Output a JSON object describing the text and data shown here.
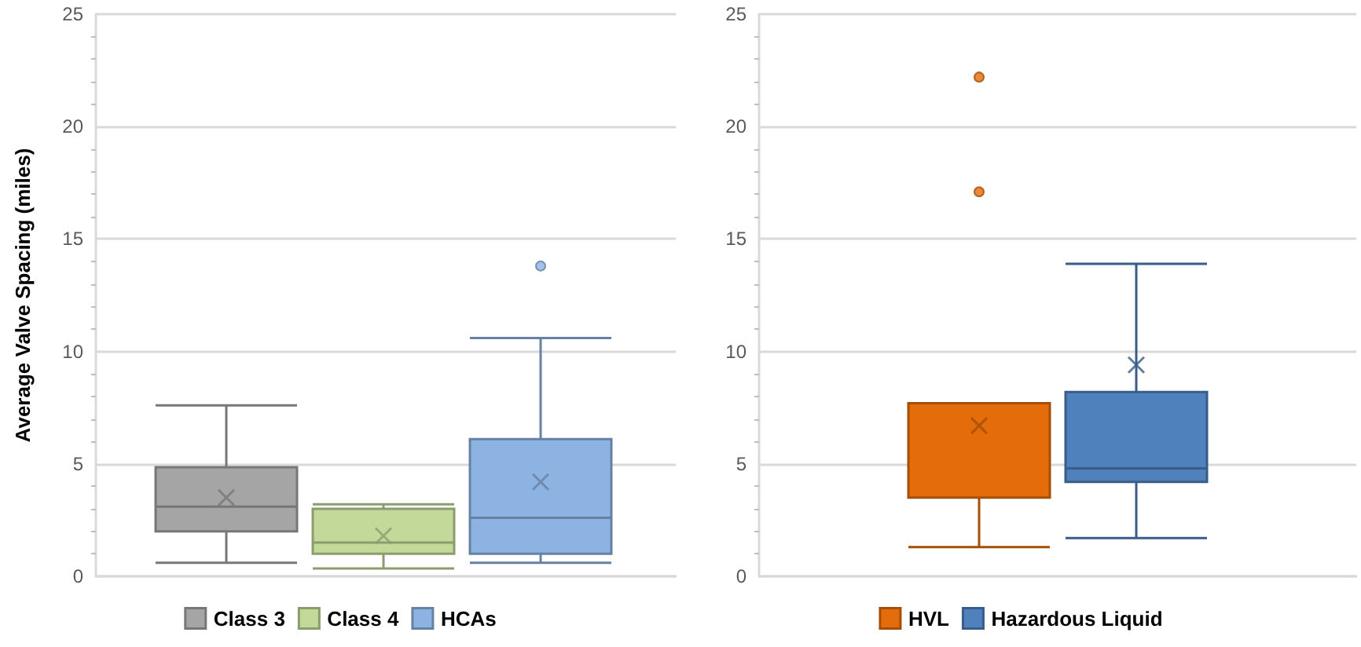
{
  "chart_data": [
    {
      "type": "box",
      "ylabel": "Average Valve Spacing (miles)",
      "categories": [
        null
      ],
      "ylim": [
        0,
        25
      ],
      "yticks": [
        0,
        5,
        10,
        15,
        20,
        25
      ],
      "grid": "y",
      "legend": "bottom",
      "marker": "cross",
      "series": [
        {
          "name": "Class 3",
          "color": "#a5a5a5",
          "boxes": [
            {
              "low": 0.6,
              "q1": 2.0,
              "median": 3.1,
              "q3": 4.85,
              "high": 7.6,
              "mean": 3.5
            }
          ]
        },
        {
          "name": "Class 4",
          "color": "#c3d99a",
          "boxes": [
            {
              "low": 0.35,
              "q1": 1.0,
              "median": 1.5,
              "q3": 3.0,
              "high": 3.2,
              "mean": 1.8
            }
          ]
        },
        {
          "name": "HCAs",
          "color": "#8db3e2",
          "boxes": [
            {
              "low": 0.6,
              "q1": 1.0,
              "median": 2.6,
              "q3": 6.1,
              "high": 10.6,
              "mean": 4.2,
              "outliers": [
                13.8
              ]
            }
          ]
        }
      ]
    },
    {
      "type": "box",
      "categories": [
        null
      ],
      "ylim": [
        0,
        25
      ],
      "yticks": [
        0,
        5,
        10,
        15,
        20,
        25
      ],
      "grid": "y",
      "legend": "bottom",
      "marker": "cross",
      "series": [
        {
          "name": "HVL",
          "color": "#e46c0a",
          "boxes": [
            {
              "low": 1.3,
              "q1": 3.5,
              "median": 3.5,
              "q3": 7.7,
              "high": 7.7,
              "mean": 6.7,
              "outliers": [
                17.1,
                22.2
              ]
            }
          ]
        },
        {
          "name": "Hazardous Liquid",
          "color": "#4f81bd",
          "boxes": [
            {
              "low": 1.7,
              "q1": 4.2,
              "median": 4.8,
              "q3": 8.2,
              "high": 13.9,
              "mean": 9.4
            }
          ]
        }
      ]
    }
  ]
}
